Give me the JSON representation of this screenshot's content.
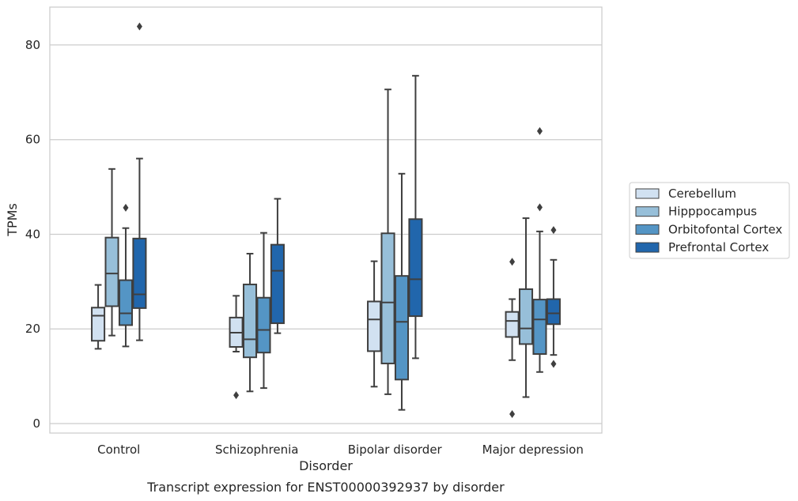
{
  "chart_data": {
    "type": "boxplot",
    "caption": "Transcript expression for ENST00000392937 by disorder",
    "xlabel": "Disorder",
    "ylabel": "TPMs",
    "ylim": [
      -2,
      88
    ],
    "yticks": [
      0,
      20,
      40,
      60,
      80
    ],
    "grid": true,
    "legend_position": "right",
    "categories": [
      "Control",
      "Schizophrenia",
      "Bipolar disorder",
      "Major depression"
    ],
    "series": [
      {
        "name": "Cerebellum",
        "color": "#d1e1f1",
        "boxes": [
          {
            "whislo": 15.8,
            "q1": 17.5,
            "med": 22.8,
            "q3": 24.5,
            "whishi": 29.3,
            "fliers": []
          },
          {
            "whislo": 15.2,
            "q1": 16.2,
            "med": 19.2,
            "q3": 22.4,
            "whishi": 27.0,
            "fliers": [
              6.0
            ]
          },
          {
            "whislo": 7.8,
            "q1": 15.3,
            "med": 22.0,
            "q3": 25.8,
            "whishi": 34.3,
            "fliers": []
          },
          {
            "whislo": 13.4,
            "q1": 18.3,
            "med": 21.7,
            "q3": 23.6,
            "whishi": 26.3,
            "fliers": [
              2.0,
              34.2
            ]
          }
        ]
      },
      {
        "name": "Hipppocampus",
        "color": "#97bfd9",
        "boxes": [
          {
            "whislo": 18.6,
            "q1": 24.8,
            "med": 31.7,
            "q3": 39.3,
            "whishi": 53.8,
            "fliers": []
          },
          {
            "whislo": 6.8,
            "q1": 14.0,
            "med": 17.8,
            "q3": 29.4,
            "whishi": 35.9,
            "fliers": []
          },
          {
            "whislo": 6.2,
            "q1": 12.7,
            "med": 25.6,
            "q3": 40.2,
            "whishi": 70.6,
            "fliers": []
          },
          {
            "whislo": 5.6,
            "q1": 16.8,
            "med": 20.1,
            "q3": 28.4,
            "whishi": 43.4,
            "fliers": []
          }
        ]
      },
      {
        "name": "Orbitofontal Cortex",
        "color": "#5495c5",
        "boxes": [
          {
            "whislo": 16.3,
            "q1": 20.8,
            "med": 23.3,
            "q3": 30.3,
            "whishi": 41.3,
            "fliers": [
              45.6
            ]
          },
          {
            "whislo": 7.5,
            "q1": 15.0,
            "med": 19.8,
            "q3": 26.6,
            "whishi": 40.3,
            "fliers": []
          },
          {
            "whislo": 2.9,
            "q1": 9.3,
            "med": 21.5,
            "q3": 31.2,
            "whishi": 52.8,
            "fliers": []
          },
          {
            "whislo": 10.9,
            "q1": 14.7,
            "med": 22.0,
            "q3": 26.2,
            "whishi": 40.6,
            "fliers": [
              45.7,
              61.8
            ]
          }
        ]
      },
      {
        "name": "Prefrontal Cortex",
        "color": "#2166ac",
        "boxes": [
          {
            "whislo": 17.6,
            "q1": 24.4,
            "med": 27.3,
            "q3": 39.1,
            "whishi": 56.0,
            "fliers": [
              83.9
            ]
          },
          {
            "whislo": 19.1,
            "q1": 21.2,
            "med": 32.3,
            "q3": 37.8,
            "whishi": 47.5,
            "fliers": []
          },
          {
            "whislo": 13.8,
            "q1": 22.7,
            "med": 30.5,
            "q3": 43.2,
            "whishi": 73.5,
            "fliers": []
          },
          {
            "whislo": 14.5,
            "q1": 21.0,
            "med": 23.3,
            "q3": 26.3,
            "whishi": 34.6,
            "fliers": [
              12.6,
              40.9
            ]
          }
        ]
      }
    ]
  }
}
